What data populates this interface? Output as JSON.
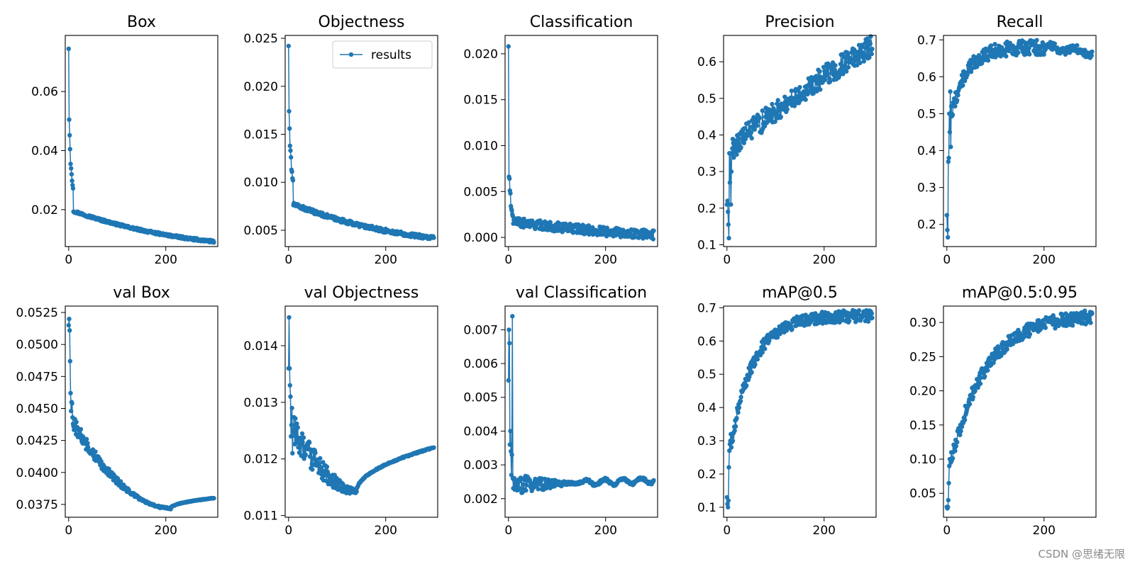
{
  "figure": {
    "watermark": "CSDN @思绪无限",
    "series_color": "#1f77b4"
  },
  "chart_data": [
    {
      "id": "box",
      "type": "line",
      "title": "Box",
      "legend": [],
      "xlim": [
        -7,
        307
      ],
      "ylim": [
        0.0075,
        0.079
      ],
      "xticks": [
        0,
        200
      ],
      "yticks": [
        0.02,
        0.04,
        0.06
      ],
      "ytick_labels": [
        "0.02",
        "0.04",
        "0.06"
      ],
      "series": [
        {
          "name": "results",
          "kind": "decay",
          "x_end": 299,
          "start_values": [
            0.0745,
            0.0505,
            0.0452,
            0.0405,
            0.0355,
            0.034,
            0.032,
            0.0298,
            0.0283,
            0.0272
          ],
          "plateau": 0.0195,
          "end_value": 0.0092,
          "curve": 1.2,
          "noise": 0.0004
        }
      ]
    },
    {
      "id": "objectness",
      "type": "line",
      "title": "Objectness",
      "legend": [
        "results"
      ],
      "xlim": [
        -7,
        307
      ],
      "ylim": [
        0.0033,
        0.0253
      ],
      "xticks": [
        0,
        200
      ],
      "yticks": [
        0.005,
        0.01,
        0.015,
        0.02,
        0.025
      ],
      "ytick_labels": [
        "0.005",
        "0.010",
        "0.015",
        "0.020",
        "0.025"
      ],
      "series": [
        {
          "name": "results",
          "kind": "decay",
          "x_end": 299,
          "start_values": [
            0.0242,
            0.0174,
            0.0156,
            0.0138,
            0.0133,
            0.0126,
            0.0113,
            0.0111,
            0.0104,
            0.0102
          ],
          "plateau": 0.0077,
          "end_value": 0.0042,
          "curve": 1.3,
          "noise": 0.0002
        }
      ]
    },
    {
      "id": "classification",
      "type": "line",
      "title": "Classification",
      "legend": [],
      "xlim": [
        -7,
        307
      ],
      "ylim": [
        -0.001,
        0.022
      ],
      "xticks": [
        0,
        200
      ],
      "yticks": [
        0.0,
        0.005,
        0.01,
        0.015,
        0.02
      ],
      "ytick_labels": [
        "0.000",
        "0.005",
        "0.010",
        "0.015",
        "0.020"
      ],
      "series": [
        {
          "name": "results",
          "kind": "decay",
          "x_end": 299,
          "start_values": [
            0.0208,
            0.0066,
            0.0064,
            0.0051,
            0.0048,
            0.0034,
            0.0031,
            0.0029,
            0.0025,
            0.0023
          ],
          "plateau": 0.0017,
          "end_value": 0.0003,
          "curve": 0.8,
          "noise": 0.0005
        }
      ]
    },
    {
      "id": "precision",
      "type": "line",
      "title": "Precision",
      "legend": [],
      "xlim": [
        -7,
        307
      ],
      "ylim": [
        0.095,
        0.672
      ],
      "xticks": [
        0,
        200
      ],
      "yticks": [
        0.1,
        0.2,
        0.3,
        0.4,
        0.5,
        0.6
      ],
      "ytick_labels": [
        "0.1",
        "0.2",
        "0.3",
        "0.4",
        "0.5",
        "0.6"
      ],
      "series": [
        {
          "name": "results",
          "kind": "rise",
          "x_end": 299,
          "start_values": [
            0.21,
            0.22,
            0.19,
            0.155,
            0.118,
            0.35,
            0.27,
            0.35,
            0.21,
            0.3
          ],
          "level_start": 0.36,
          "level_end": 0.645,
          "curve": 1.4,
          "noise": 0.03
        }
      ]
    },
    {
      "id": "recall",
      "type": "line",
      "title": "Recall",
      "legend": [],
      "xlim": [
        -7,
        307
      ],
      "ylim": [
        0.14,
        0.712
      ],
      "xticks": [
        0,
        200
      ],
      "yticks": [
        0.2,
        0.3,
        0.4,
        0.5,
        0.6,
        0.7
      ],
      "ytick_labels": [
        "0.2",
        "0.3",
        "0.4",
        "0.5",
        "0.6",
        "0.7"
      ],
      "series": [
        {
          "name": "results",
          "kind": "rise_plateau",
          "x_end": 299,
          "start_values": [
            0.225,
            0.185,
            0.165,
            0.37,
            0.38,
            0.5,
            0.45,
            0.56,
            0.41,
            0.52
          ],
          "level_start": 0.5,
          "level_peak": 0.68,
          "peak_x": 200,
          "level_end": 0.665,
          "curve": 0.35,
          "noise": 0.02
        }
      ]
    },
    {
      "id": "val_box",
      "type": "line",
      "title": "val Box",
      "legend": [],
      "xlim": [
        -7,
        307
      ],
      "ylim": [
        0.0365,
        0.053
      ],
      "xticks": [
        0,
        200
      ],
      "yticks": [
        0.0375,
        0.04,
        0.0425,
        0.045,
        0.0475,
        0.05,
        0.0525
      ],
      "ytick_labels": [
        "0.0375",
        "0.0400",
        "0.0425",
        "0.0450",
        "0.0475",
        "0.0500",
        "0.0525"
      ],
      "series": [
        {
          "name": "results",
          "kind": "valley",
          "x_end": 299,
          "start_values": [
            0.0515,
            0.052,
            0.0511,
            0.0487,
            0.0462,
            0.0448,
            0.0455,
            0.0454,
            0.0443,
            0.0438
          ],
          "valley_value": 0.0372,
          "valley_x": 210,
          "end_value": 0.038,
          "curve": 0.9,
          "noise": 0.0006,
          "noise_fade": 175
        }
      ]
    },
    {
      "id": "val_objectness",
      "type": "line",
      "title": "val Objectness",
      "legend": [],
      "xlim": [
        -7,
        307
      ],
      "ylim": [
        0.01097,
        0.0147
      ],
      "xticks": [
        0,
        200
      ],
      "yticks": [
        0.011,
        0.012,
        0.013,
        0.014
      ],
      "ytick_labels": [
        "0.011",
        "0.012",
        "0.013",
        "0.014"
      ],
      "series": [
        {
          "name": "results",
          "kind": "valley",
          "x_end": 299,
          "start_values": [
            0.0136,
            0.0145,
            0.0136,
            0.0133,
            0.0131,
            0.0124,
            0.0126,
            0.0129,
            0.0121,
            0.0125
          ],
          "valley_value": 0.01142,
          "valley_x": 140,
          "end_value": 0.0122,
          "curve": 0.7,
          "noise": 0.0003,
          "noise_fade": 160
        }
      ]
    },
    {
      "id": "val_classification",
      "type": "line",
      "title": "val Classification",
      "legend": [],
      "xlim": [
        -7,
        307
      ],
      "ylim": [
        0.00145,
        0.0077
      ],
      "xticks": [
        0,
        200
      ],
      "yticks": [
        0.002,
        0.003,
        0.004,
        0.005,
        0.006,
        0.007
      ],
      "ytick_labels": [
        "0.002",
        "0.003",
        "0.004",
        "0.005",
        "0.006",
        "0.007"
      ],
      "series": [
        {
          "name": "results",
          "kind": "decay_flat",
          "x_end": 299,
          "start_values": [
            0.0055,
            0.007,
            0.0066,
            0.0036,
            0.004,
            0.0034,
            0.0027,
            0.0033,
            0.0074,
            0.0026
          ],
          "plateau": 0.0024,
          "end_value": 0.00254,
          "curve": 1.0,
          "noise": 0.00035,
          "noise_fade": 140
        }
      ]
    },
    {
      "id": "map50",
      "type": "line",
      "title": "mAP@0.5",
      "legend": [],
      "xlim": [
        -7,
        307
      ],
      "ylim": [
        0.07,
        0.705
      ],
      "xticks": [
        0,
        200
      ],
      "yticks": [
        0.1,
        0.2,
        0.3,
        0.4,
        0.5,
        0.6,
        0.7
      ],
      "ytick_labels": [
        "0.1",
        "0.2",
        "0.3",
        "0.4",
        "0.5",
        "0.6",
        "0.7"
      ],
      "series": [
        {
          "name": "results",
          "kind": "saturate",
          "x_end": 299,
          "start_values": [
            0.13,
            0.11,
            0.1,
            0.12,
            0.22,
            0.27,
            0.29,
            0.3,
            0.32,
            0.28
          ],
          "level_start": 0.3,
          "level_end": 0.676,
          "rate": 0.022,
          "noise": 0.018
        }
      ]
    },
    {
      "id": "map50_95",
      "type": "line",
      "title": "mAP@0.5:0.95",
      "legend": [],
      "xlim": [
        -7,
        307
      ],
      "ylim": [
        0.015,
        0.324
      ],
      "xticks": [
        0,
        200
      ],
      "yticks": [
        0.05,
        0.1,
        0.15,
        0.2,
        0.25,
        0.3
      ],
      "ytick_labels": [
        "0.05",
        "0.10",
        "0.15",
        "0.20",
        "0.25",
        "0.30"
      ],
      "series": [
        {
          "name": "results",
          "kind": "saturate",
          "x_end": 299,
          "start_values": [
            0.03,
            0.028,
            0.03,
            0.04,
            0.065,
            0.09,
            0.1,
            0.1,
            0.095,
            0.11
          ],
          "level_start": 0.1,
          "level_end": 0.312,
          "rate": 0.014,
          "noise": 0.01
        }
      ]
    }
  ]
}
